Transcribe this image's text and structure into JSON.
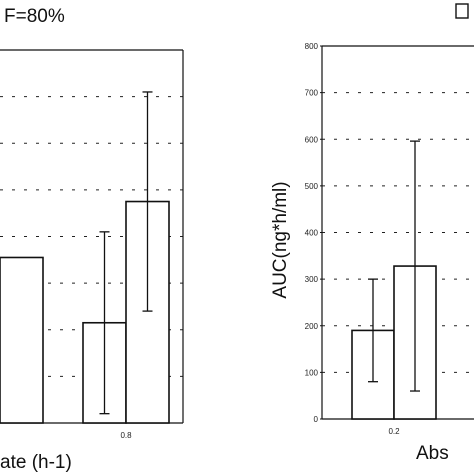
{
  "header": {
    "left_title": "F=80%"
  },
  "chart_data": [
    {
      "type": "bar",
      "title": "",
      "xlabel": "ate (h-1)",
      "ylabel": "",
      "ylim": [
        0,
        800
      ],
      "grid": true,
      "categories": [
        "",
        "0.8"
      ],
      "series": [
        {
          "values": [
            null,
            215
          ],
          "errors": [
            null,
            195
          ]
        },
        {
          "values": [
            355,
            475
          ],
          "errors": [
            null,
            235
          ]
        }
      ]
    },
    {
      "type": "bar",
      "title": "",
      "xlabel": "Abs",
      "ylabel": "AUC(ng*h/ml)",
      "ylim": [
        0,
        800
      ],
      "yticks": [
        0,
        100,
        200,
        300,
        400,
        500,
        600,
        700,
        800
      ],
      "grid": true,
      "categories": [
        "0.2"
      ],
      "series": [
        {
          "values": [
            190
          ],
          "errors": [
            110
          ]
        },
        {
          "values": [
            328
          ],
          "errors": [
            268
          ]
        }
      ]
    }
  ]
}
